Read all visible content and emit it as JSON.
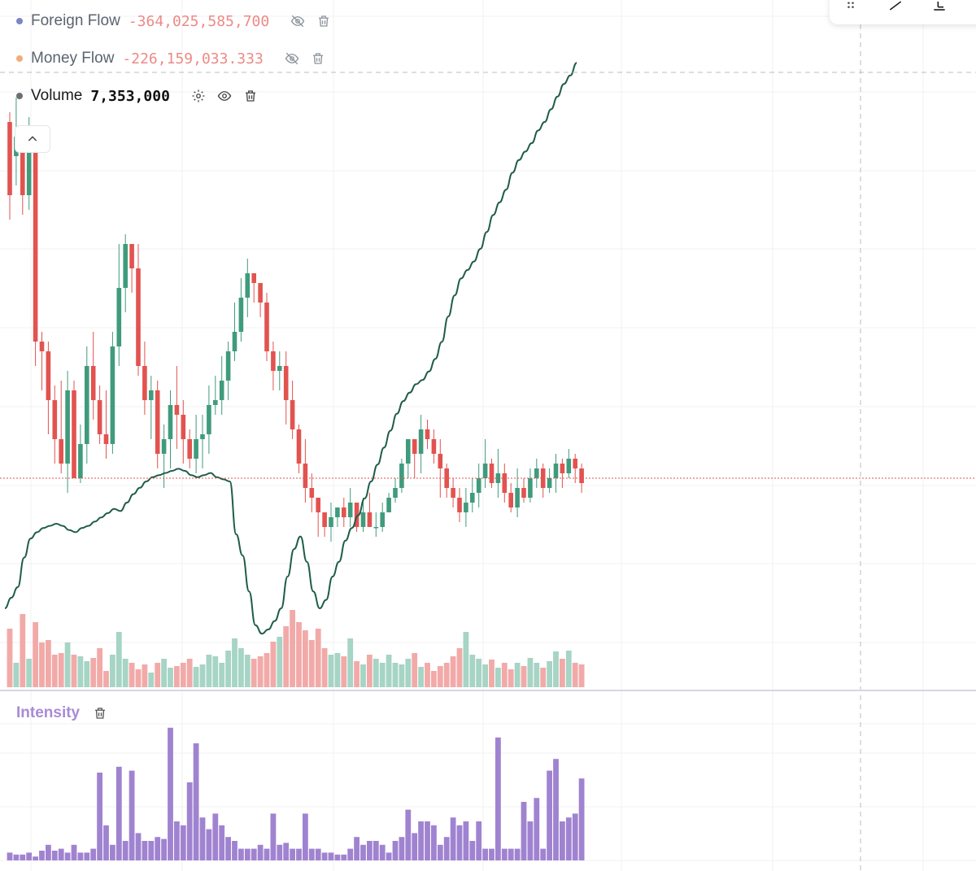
{
  "legend": {
    "foreign_flow": {
      "label": "Foreign Flow",
      "value": "-364,025,585,700",
      "dot_color": "#7a86c6",
      "value_color": "#ec8a86"
    },
    "money_flow": {
      "label": "Money Flow",
      "value": "-226,159,033.333",
      "dot_color": "#f0ad7c",
      "value_color": "#ec8a86"
    },
    "volume": {
      "label": "Volume",
      "value": "7,353,000",
      "dot_color": "#6b6f75"
    }
  },
  "intensity_pane": {
    "label": "Intensity"
  },
  "icons": [
    "eye-off-icon",
    "trash-icon",
    "gear-icon",
    "eye-icon",
    "chevron-up-icon",
    "drag-handle-icon",
    "trend-line-icon",
    "fib-tool-icon",
    "download-icon"
  ],
  "colors": {
    "up": "#3f9b7c",
    "down": "#e2534f",
    "flow_line": "#1f5c4a",
    "intensity": "#a083d0",
    "vol_up": "#a6d4c5",
    "vol_down": "#f1aaa8",
    "ref_line": "#e2534f"
  },
  "chart_data": [
    {
      "type": "candlestick",
      "y_range": [
        0,
        100
      ],
      "current_price_level": 22,
      "candles": [
        [
          95.0,
          80.0,
          97.0,
          75.0
        ],
        [
          88.0,
          92.0,
          100.0,
          82.0
        ],
        [
          92.0,
          80.0,
          94.0,
          76.0
        ],
        [
          80.0,
          90.0,
          96.0,
          77.0
        ],
        [
          90.0,
          50.0,
          92.0,
          45.0
        ],
        [
          50.0,
          48.0,
          52.0,
          40.0
        ],
        [
          48.0,
          38.0,
          50.0,
          31.0
        ],
        [
          38.0,
          30.0,
          41.0,
          25.0
        ],
        [
          30.0,
          25.0,
          42.0,
          23.0
        ],
        [
          25.0,
          40.0,
          44.0,
          19.0
        ],
        [
          40.0,
          22.0,
          42.0,
          22.0
        ],
        [
          22.0,
          29.0,
          33.0,
          21.0
        ],
        [
          29.0,
          45.0,
          49.0,
          25.0
        ],
        [
          45.0,
          38.0,
          52.0,
          34.0
        ],
        [
          38.0,
          31.0,
          41.0,
          29.0
        ],
        [
          31.0,
          29.0,
          40.0,
          26.0
        ],
        [
          29.0,
          49.0,
          52.0,
          27.0
        ],
        [
          49.0,
          61.0,
          70.0,
          45.0
        ],
        [
          61.0,
          70.0,
          72.0,
          56.0
        ],
        [
          70.0,
          65.0,
          68.0,
          60.0
        ],
        [
          65.0,
          45.0,
          70.0,
          43.0
        ],
        [
          45.0,
          38.0,
          50.0,
          35.0
        ],
        [
          38.0,
          40.0,
          43.0,
          30.0
        ],
        [
          40.0,
          27.0,
          42.0,
          24.0
        ],
        [
          27.0,
          30.0,
          33.0,
          20.0
        ],
        [
          30.0,
          37.0,
          40.0,
          24.0
        ],
        [
          37.0,
          35.0,
          45.0,
          28.0
        ],
        [
          35.0,
          30.0,
          38.0,
          25.0
        ],
        [
          30.0,
          26.0,
          32.0,
          24.0
        ],
        [
          26.0,
          30.0,
          35.0,
          23.0
        ],
        [
          30.0,
          31.0,
          35.0,
          24.0
        ],
        [
          31.0,
          37.0,
          41.0,
          27.0
        ],
        [
          37.0,
          38.0,
          43.0,
          35.0
        ],
        [
          38.0,
          42.0,
          47.0,
          35.0
        ],
        [
          42.0,
          48.0,
          50.0,
          38.0
        ],
        [
          48.0,
          52.0,
          58.0,
          46.0
        ],
        [
          52.0,
          59.0,
          63.0,
          50.0
        ],
        [
          59.0,
          64.0,
          67.0,
          55.0
        ],
        [
          64.0,
          62.0,
          63.0,
          58.0
        ],
        [
          62.0,
          58.0,
          62.0,
          55.0
        ],
        [
          58.0,
          48.0,
          60.0,
          46.0
        ],
        [
          48.0,
          44.0,
          50.0,
          40.0
        ],
        [
          44.0,
          45.0,
          48.0,
          40.0
        ],
        [
          45.0,
          38.0,
          48.0,
          33.0
        ],
        [
          38.0,
          32.0,
          42.0,
          30.0
        ],
        [
          32.0,
          25.0,
          33.0,
          23.0
        ],
        [
          25.0,
          20.0,
          30.0,
          17.0
        ],
        [
          20.0,
          18.0,
          23.0,
          15.0
        ],
        [
          18.0,
          15.0,
          18.0,
          10.0
        ],
        [
          15.0,
          12.0,
          15.0,
          10.0
        ],
        [
          12.0,
          14.0,
          17.0,
          9.0
        ],
        [
          14.0,
          16.0,
          16.0,
          12.0
        ],
        [
          16.0,
          14.0,
          18.0,
          12.0
        ],
        [
          14.0,
          17.0,
          20.0,
          12.0
        ],
        [
          17.0,
          12.0,
          17.0,
          11.0
        ],
        [
          12.0,
          15.0,
          18.0,
          11.0
        ],
        [
          15.0,
          12.0,
          19.0,
          12.0
        ],
        [
          12.0,
          12.0,
          15.0,
          10.0
        ],
        [
          12.0,
          15.0,
          17.0,
          11.0
        ],
        [
          15.0,
          18.0,
          19.0,
          15.0
        ],
        [
          18.0,
          20.0,
          22.0,
          17.0
        ],
        [
          20.0,
          25.0,
          26.0,
          19.0
        ],
        [
          25.0,
          30.0,
          30.0,
          22.0
        ],
        [
          30.0,
          27.0,
          28.0,
          22.0
        ],
        [
          27.0,
          32.0,
          35.0,
          23.0
        ],
        [
          32.0,
          30.0,
          34.0,
          28.0
        ],
        [
          30.0,
          27.0,
          32.0,
          25.0
        ],
        [
          27.0,
          24.0,
          30.0,
          18.0
        ],
        [
          24.0,
          20.0,
          25.0,
          18.0
        ],
        [
          20.0,
          18.0,
          22.0,
          16.0
        ],
        [
          18.0,
          15.0,
          20.0,
          13.0
        ],
        [
          15.0,
          17.0,
          20.0,
          12.0
        ],
        [
          17.0,
          19.0,
          22.0,
          15.0
        ],
        [
          19.0,
          22.0,
          25.0,
          16.0
        ],
        [
          22.0,
          25.0,
          30.0,
          20.0
        ],
        [
          25.0,
          21.0,
          26.0,
          20.0
        ],
        [
          21.0,
          23.0,
          28.0,
          18.0
        ],
        [
          23.0,
          19.0,
          25.0,
          17.0
        ],
        [
          19.0,
          16.0,
          21.0,
          15.0
        ],
        [
          16.0,
          20.0,
          24.0,
          14.0
        ],
        [
          20.0,
          18.0,
          22.0,
          17.0
        ],
        [
          18.0,
          22.0,
          24.0,
          17.0
        ],
        [
          22.0,
          24.0,
          26.0,
          20.0
        ],
        [
          24.0,
          20.0,
          25.0,
          18.0
        ],
        [
          20.0,
          22.0,
          24.0,
          19.0
        ],
        [
          22.0,
          25.0,
          27.0,
          19.0
        ],
        [
          25.0,
          23.0,
          26.0,
          20.0
        ],
        [
          23.0,
          26.0,
          28.0,
          22.0
        ],
        [
          26.0,
          24.0,
          27.0,
          21.0
        ],
        [
          24.0,
          21.0,
          25.0,
          19.0
        ]
      ],
      "volumes": [
        72,
        30,
        90,
        35,
        80,
        55,
        58,
        40,
        42,
        55,
        40,
        38,
        32,
        36,
        48,
        20,
        40,
        68,
        35,
        30,
        22,
        28,
        18,
        30,
        35,
        24,
        26,
        30,
        35,
        25,
        28,
        40,
        38,
        30,
        45,
        60,
        48,
        40,
        35,
        38,
        42,
        56,
        62,
        75,
        95,
        80,
        70,
        58,
        72,
        48,
        40,
        42,
        38,
        60,
        32,
        28,
        40,
        35,
        30,
        40,
        30,
        28,
        35,
        42,
        25,
        30,
        20,
        26,
        30,
        38,
        48,
        68,
        40,
        35,
        28,
        34,
        24,
        30,
        22,
        30,
        26,
        36,
        30,
        24,
        32,
        44,
        35,
        45,
        30,
        28
      ],
      "flow_line": [
        20,
        25,
        30,
        44,
        53,
        56,
        58,
        59,
        60,
        59,
        57,
        56,
        58,
        59,
        61,
        63,
        65,
        67,
        66,
        70,
        74,
        77,
        80,
        82,
        83,
        84,
        85,
        86,
        85,
        83,
        82,
        83,
        84,
        82,
        81,
        80,
        55,
        45,
        28,
        12,
        8,
        10,
        14,
        20,
        35,
        48,
        54,
        42,
        28,
        20,
        24,
        35,
        42,
        52,
        58,
        64,
        72,
        80,
        88,
        96,
        104,
        112,
        118,
        122,
        126,
        128,
        132,
        138,
        146,
        158,
        168,
        176,
        180,
        184,
        190,
        198,
        206,
        212,
        218,
        226,
        232,
        236,
        240,
        246,
        250,
        256,
        262,
        268,
        272,
        278
      ]
    },
    {
      "type": "bar",
      "series_name": "Intensity",
      "values": [
        4,
        3,
        3,
        4,
        2,
        5,
        8,
        5,
        6,
        4,
        8,
        4,
        4,
        6,
        45,
        18,
        8,
        48,
        10,
        46,
        14,
        10,
        10,
        12,
        11,
        68,
        20,
        18,
        40,
        60,
        22,
        16,
        24,
        18,
        12,
        10,
        6,
        6,
        6,
        8,
        6,
        24,
        8,
        9,
        6,
        6,
        24,
        6,
        6,
        4,
        4,
        3,
        3,
        6,
        12,
        8,
        10,
        10,
        8,
        4,
        10,
        12,
        26,
        14,
        20,
        20,
        18,
        8,
        12,
        22,
        18,
        20,
        10,
        20,
        6,
        6,
        63,
        6,
        6,
        6,
        30,
        20,
        32,
        6,
        46,
        52,
        20,
        22,
        24,
        42
      ]
    }
  ]
}
